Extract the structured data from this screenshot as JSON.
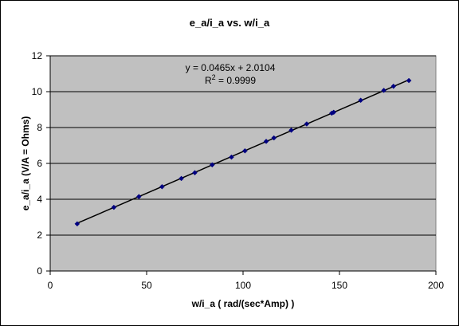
{
  "chart_data": {
    "type": "scatter",
    "title": "e_a/i_a vs. w/i_a",
    "xlabel": "w/i_a  ( rad/(sec*Amp) )",
    "ylabel": "e_a/i_a (V/A = Ohms)",
    "xlim": [
      0,
      200
    ],
    "ylim": [
      0,
      12
    ],
    "x_ticks": [
      "0",
      "50",
      "100",
      "150",
      "200"
    ],
    "y_ticks": [
      "0",
      "2",
      "4",
      "6",
      "8",
      "10",
      "12"
    ],
    "grid": "horizontal",
    "plot_background": "#c0c0c0",
    "marker_color": "#000080",
    "trendline": {
      "slope": 0.0465,
      "intercept": 2.0104,
      "equation": "y = 0.0465x + 2.0104",
      "r2_prefix": "R",
      "r2_sup": "2",
      "r2_value": " = 0.9999"
    },
    "series": [
      {
        "points": [
          [
            14,
            2.63
          ],
          [
            33,
            3.55
          ],
          [
            46,
            4.15
          ],
          [
            58,
            4.7
          ],
          [
            68,
            5.16
          ],
          [
            75,
            5.48
          ],
          [
            84,
            5.92
          ],
          [
            94,
            6.35
          ],
          [
            101,
            6.7
          ],
          [
            112,
            7.23
          ],
          [
            116,
            7.42
          ],
          [
            125,
            7.85
          ],
          [
            133,
            8.2
          ],
          [
            146,
            8.8
          ],
          [
            147,
            8.85
          ],
          [
            161,
            9.52
          ],
          [
            173,
            10.07
          ],
          [
            178,
            10.3
          ],
          [
            186,
            10.62
          ]
        ]
      }
    ]
  }
}
